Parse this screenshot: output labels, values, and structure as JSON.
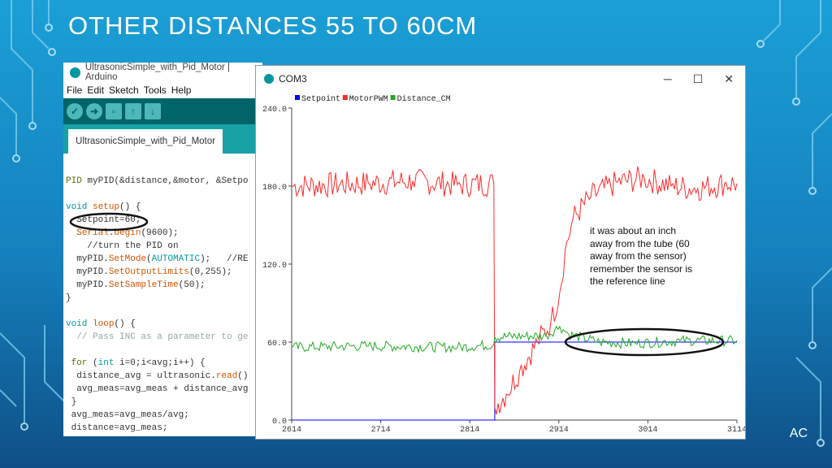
{
  "slide": {
    "title": "OTHER DISTANCES 55 TO 60CM",
    "footer": "AC",
    "colors": {
      "background_top": "#1b9fd6",
      "background_bottom": "#0f4f86"
    }
  },
  "ide": {
    "title": "UltrasonicSimple_with_Pid_Motor | Arduino",
    "menu": [
      "File",
      "Edit",
      "Sketch",
      "Tools",
      "Help"
    ],
    "toolbar_icons": [
      "verify-icon",
      "upload-icon",
      "new-icon",
      "open-icon",
      "save-icon"
    ],
    "tab_label": "UltrasonicSimple_with_Pid_Motor",
    "code_lines": [
      "PID myPID(&distance,&motor, &Setpo",
      "",
      "void setup() {",
      "  Setpoint=60;",
      "  Serial.begin(9600);",
      "    //turn the PID on",
      "  myPID.SetMode(AUTOMATIC);   //RE",
      "  myPID.SetOutputLimits(0,255);",
      "  myPID.SetSampleTime(50);",
      "}",
      "",
      "void loop() {",
      "  // Pass INC as a parameter to ge",
      "",
      " for (int i=0;i<avg;i++) {",
      "  distance_avg = ultrasonic.read()",
      "  avg_meas=avg_meas + distance_avg",
      " }",
      " avg_meas=avg_meas/avg;",
      " distance=avg_meas;"
    ]
  },
  "plotter": {
    "title": "COM3",
    "window_controls": [
      "─",
      "☐",
      "✕"
    ],
    "annotation": "it was about an inch away from the tube (60 away from the sensor) remember the sensor is the reference line"
  },
  "chart_data": {
    "type": "line",
    "y_ticks": [
      "240.0",
      "180.0",
      "120.0",
      "60.0",
      "0.0"
    ],
    "ylim": [
      0,
      240
    ],
    "x_ticks": [
      "2614",
      "2714",
      "2814",
      "2914",
      "3014",
      "3114"
    ],
    "xlim": [
      2614,
      3114
    ],
    "series": [
      {
        "name": "Setpoint",
        "color": "#0000ff",
        "points": [
          [
            2614,
            0
          ],
          [
            2842,
            0
          ],
          [
            2842,
            60
          ],
          [
            3114,
            60
          ]
        ]
      },
      {
        "name": "MotorPWM",
        "color": "#ff2a2a",
        "points": [
          [
            2614,
            180
          ],
          [
            2700,
            182
          ],
          [
            2750,
            184
          ],
          [
            2800,
            181
          ],
          [
            2841,
            182
          ],
          [
            2842,
            10
          ],
          [
            2855,
            20
          ],
          [
            2870,
            38
          ],
          [
            2890,
            60
          ],
          [
            2905,
            75
          ],
          [
            2915,
            98
          ],
          [
            2921,
            130
          ],
          [
            2930,
            155
          ],
          [
            2950,
            172
          ],
          [
            2980,
            183
          ],
          [
            3010,
            186
          ],
          [
            3040,
            180
          ],
          [
            3070,
            178
          ],
          [
            3100,
            182
          ],
          [
            3114,
            182
          ]
        ]
      },
      {
        "name": "Distance_CM",
        "color": "#22aa22",
        "points": [
          [
            2614,
            56
          ],
          [
            2700,
            57
          ],
          [
            2800,
            56
          ],
          [
            2841,
            58
          ],
          [
            2842,
            64
          ],
          [
            2900,
            65
          ],
          [
            2915,
            72
          ],
          [
            2925,
            66
          ],
          [
            2960,
            60
          ],
          [
            3000,
            59
          ],
          [
            3050,
            61
          ],
          [
            3114,
            61
          ]
        ]
      }
    ]
  }
}
